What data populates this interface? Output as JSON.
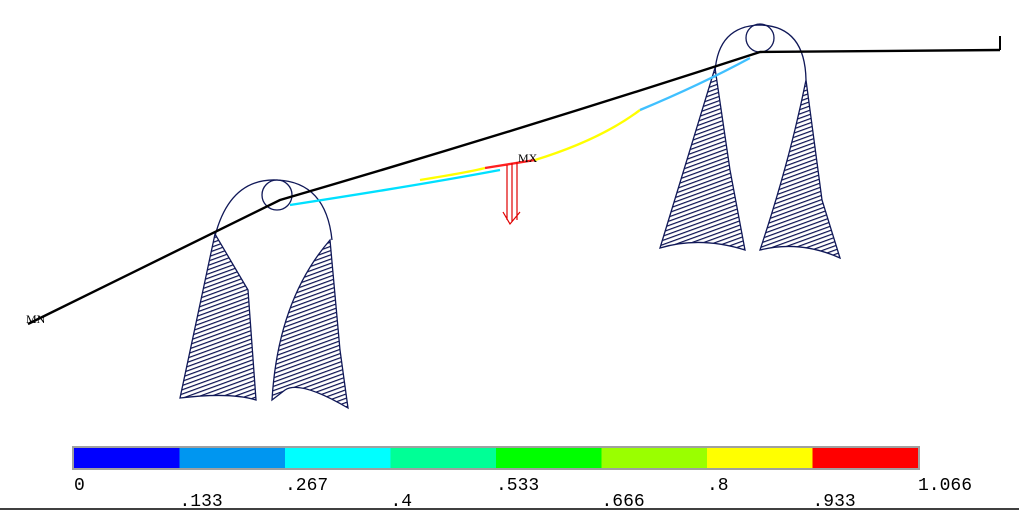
{
  "labels": {
    "min": "MN",
    "max": "MX"
  },
  "legend": {
    "colors": [
      "#0000ff",
      "#0096f0",
      "#00ffff",
      "#00ff96",
      "#00ff00",
      "#9aff00",
      "#ffff00",
      "#ff0000"
    ],
    "ticks": [
      "0",
      ".133",
      ".267",
      ".4",
      ".533",
      ".666",
      ".8",
      ".933",
      "1.066"
    ]
  }
}
